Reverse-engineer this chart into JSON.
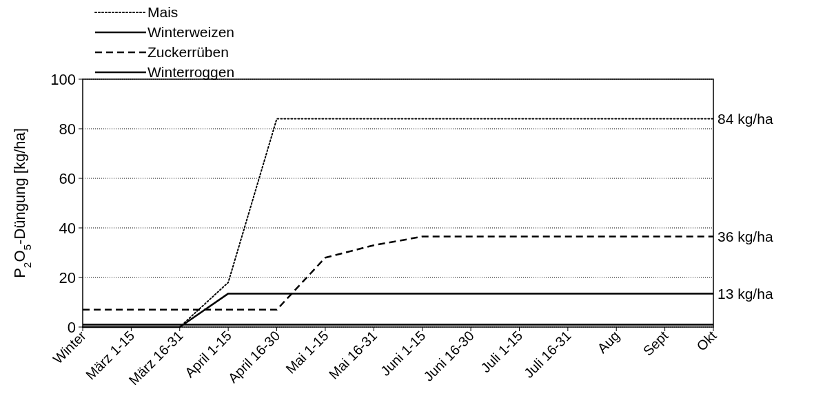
{
  "chart_data": {
    "type": "line",
    "ylabel": "P$_{2}$O$_{5}$-Düngung [kg/ha]",
    "categories": [
      "Winter",
      "März 1-15",
      "März 16-31",
      "April 1-15",
      "April 16-30",
      "Mai 1-15",
      "Mai 16-31",
      "Juni 1-15",
      "Juni 16-30",
      "Juli 1-15",
      "Juli 16-31",
      "Aug",
      "Sept",
      "Okt"
    ],
    "series": [
      {
        "name": "Mais",
        "color": "#000000",
        "line_style": "dotted",
        "values": [
          0,
          0,
          0,
          18,
          84,
          84,
          84,
          84,
          84,
          84,
          84,
          84,
          84,
          84
        ]
      },
      {
        "name": "Winterweizen",
        "color": "#000000",
        "line_style": "solid",
        "values": [
          0,
          0,
          0,
          13.5,
          13.5,
          13.5,
          13.5,
          13.5,
          13.5,
          13.5,
          13.5,
          13.5,
          13.5,
          13.5
        ]
      },
      {
        "name": "Zuckerrüben",
        "color": "#000000",
        "line_style": "dashed",
        "values": [
          7,
          7,
          7,
          7,
          7,
          28,
          33,
          36.5,
          36.5,
          36.5,
          36.5,
          36.5,
          36.5,
          36.5
        ]
      },
      {
        "name": "Winterroggen",
        "color": "#000000",
        "line_style": "solid",
        "values": [
          1,
          1,
          1,
          1,
          1,
          1,
          1,
          1,
          1,
          1,
          1,
          1,
          1,
          1
        ]
      }
    ],
    "ylim": [
      0,
      100
    ],
    "yticks": [
      0,
      20,
      40,
      60,
      80,
      100
    ],
    "grid": "y",
    "legend": "top left",
    "marker": "none",
    "annotations": [
      {
        "text": "84 kg/ha",
        "x": "Okt",
        "y": 84
      },
      {
        "text": "36 kg/ha",
        "x": "Okt",
        "y": 36.5
      },
      {
        "text": "13 kg/ha",
        "x": "Okt",
        "y": 13.5
      }
    ]
  }
}
